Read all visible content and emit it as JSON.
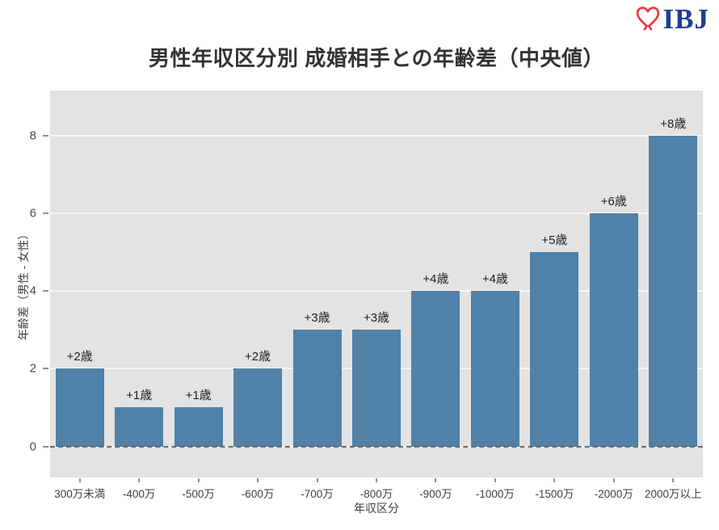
{
  "header": {
    "title": "男性年収区分別 成婚相手との年齢差（中央値）",
    "logo": {
      "text": "IBJ",
      "heart_icon": "heart-outline-icon",
      "heart_color": "#e63946",
      "text_color": "#1d3e94"
    }
  },
  "chart_data": {
    "type": "bar",
    "title": "男性年収区分別 成婚相手との年齢差（中央値）",
    "categories": [
      "300万未満",
      "-400万",
      "-500万",
      "-600万",
      "-700万",
      "-800万",
      "-900万",
      "-1000万",
      "-1500万",
      "-2000万",
      "2000万以上"
    ],
    "values": [
      2,
      1,
      1,
      2,
      3,
      3,
      4,
      4,
      5,
      6,
      8
    ],
    "bar_labels": [
      "+2歳",
      "+1歳",
      "+1歳",
      "+2歳",
      "+3歳",
      "+3歳",
      "+4歳",
      "+4歳",
      "+5歳",
      "+6歳",
      "+8歳"
    ],
    "xlabel": "年収区分",
    "ylabel": "年齢差（男性 - 女性）",
    "yticks": [
      0,
      2,
      4,
      6,
      8
    ],
    "ylim": [
      -0.8,
      9.16
    ],
    "bar_color": "#5081a8",
    "plot_bg": "#e3e3e3",
    "grid": true,
    "gridline_color": "#f7f7f7",
    "zero_line": "dashed",
    "legend": "none"
  }
}
